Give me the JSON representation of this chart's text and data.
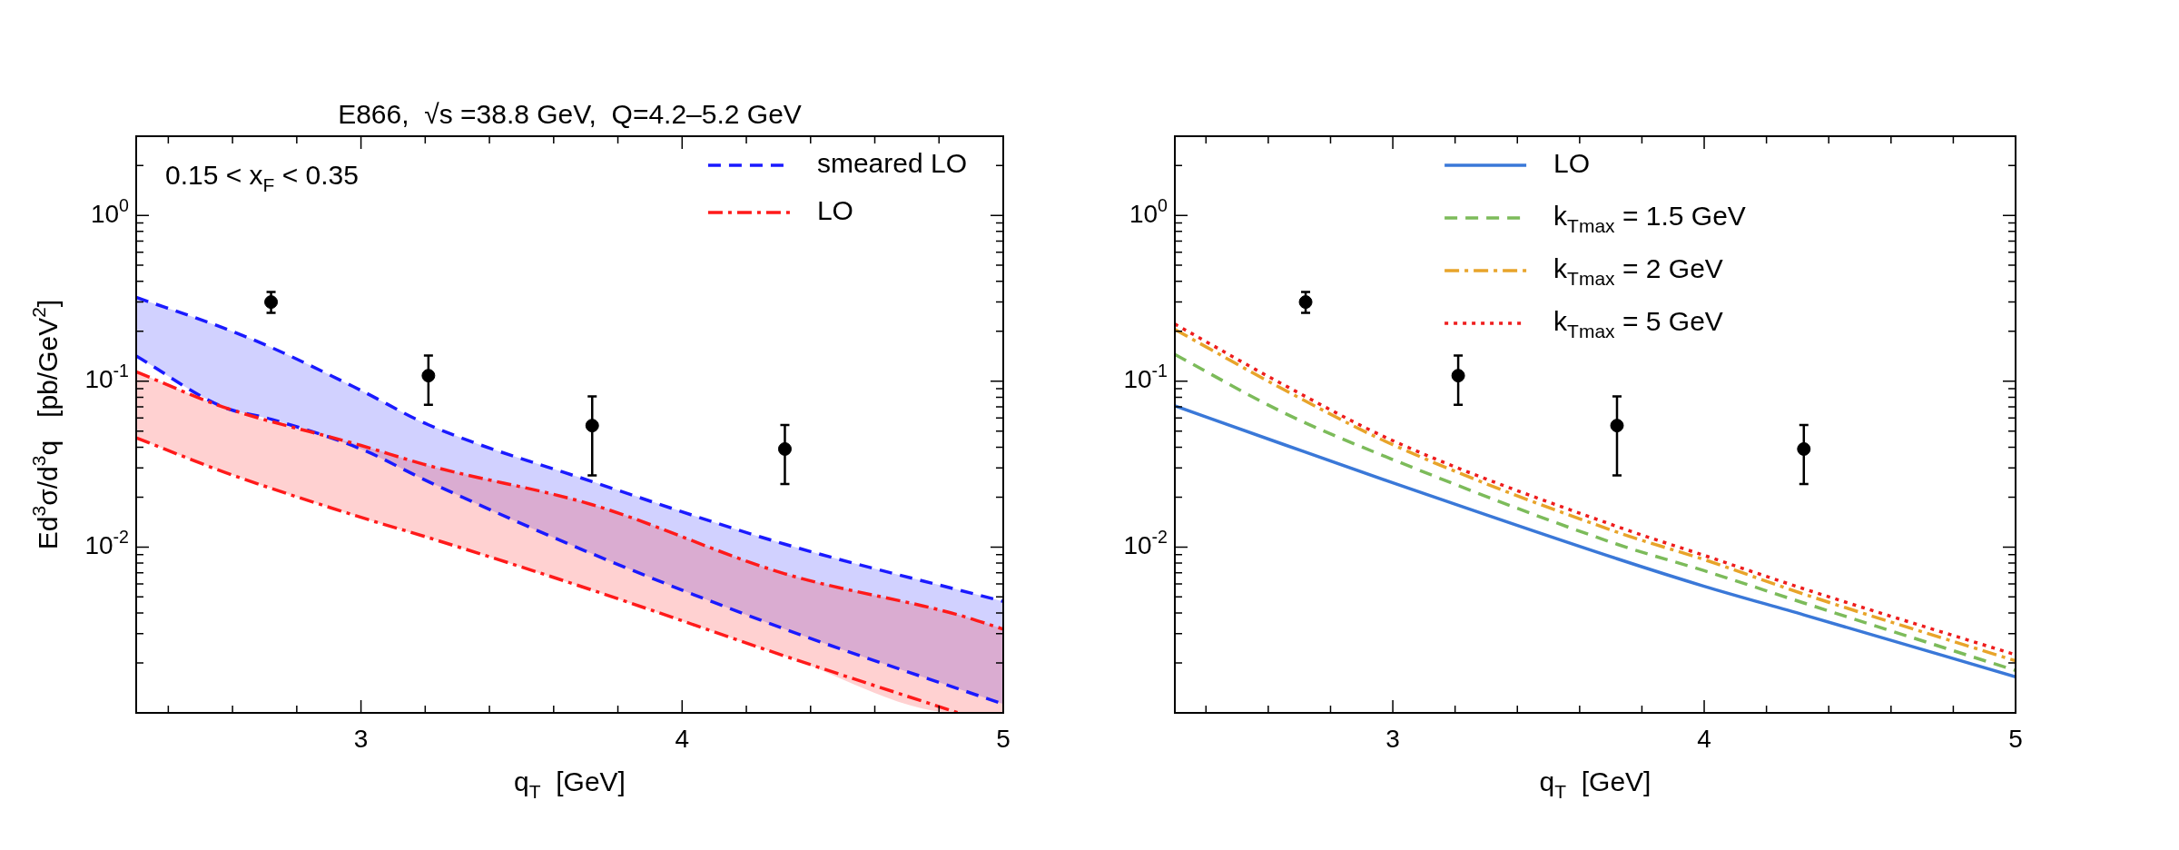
{
  "chart_data": [
    {
      "type": "line",
      "title": "E866,  √s =38.8 GeV,  Q=4.2–5.2 GeV",
      "xlabel": "q$_{T}$  [GeV]",
      "ylabel": "Ed$^{3}$σ/d$^{3}$q   [pb/GeV$^{2}$]",
      "annotations": [
        "0.15 < x$_{F}$ < 0.35"
      ],
      "log": "y",
      "grid": false,
      "legend": "top right",
      "xlim": [
        2.3,
        5
      ],
      "ylim": [
        0.001,
        3
      ],
      "xticks": [
        {
          "value": 2.4,
          "label": null
        },
        {
          "value": 2.6,
          "label": null
        },
        {
          "value": 2.8,
          "label": null
        },
        3,
        {
          "value": 3.2,
          "label": null
        },
        {
          "value": 3.4,
          "label": null
        },
        {
          "value": 3.6,
          "label": null
        },
        {
          "value": 3.8,
          "label": null
        },
        4,
        {
          "value": 4.2,
          "label": null
        },
        {
          "value": 4.4,
          "label": null
        },
        {
          "value": 4.6,
          "label": null
        },
        {
          "value": 4.8,
          "label": null
        },
        5
      ],
      "yticks": [
        {
          "value": 0.002,
          "label": null
        },
        {
          "value": 0.003,
          "label": null
        },
        {
          "value": 0.004,
          "label": null
        },
        {
          "value": 0.005,
          "label": null
        },
        {
          "value": 0.006,
          "label": null
        },
        {
          "value": 0.007,
          "label": null
        },
        {
          "value": 0.008,
          "label": null
        },
        {
          "value": 0.009,
          "label": null
        },
        {
          "value": 0.01,
          "label": "10$^{-2}$"
        },
        {
          "value": 0.02,
          "label": null
        },
        {
          "value": 0.03,
          "label": null
        },
        {
          "value": 0.04,
          "label": null
        },
        {
          "value": 0.05,
          "label": null
        },
        {
          "value": 0.06,
          "label": null
        },
        {
          "value": 0.07,
          "label": null
        },
        {
          "value": 0.08,
          "label": null
        },
        {
          "value": 0.09,
          "label": null
        },
        {
          "value": 0.1,
          "label": "10$^{-1}$"
        },
        {
          "value": 0.2,
          "label": null
        },
        {
          "value": 0.3,
          "label": null
        },
        {
          "value": 0.4,
          "label": null
        },
        {
          "value": 0.5,
          "label": null
        },
        {
          "value": 0.6,
          "label": null
        },
        {
          "value": 0.7,
          "label": null
        },
        {
          "value": 0.8,
          "label": null
        },
        {
          "value": 0.9,
          "label": null
        },
        {
          "value": 1,
          "label": "10$^{0}$"
        },
        {
          "value": 2,
          "label": null
        },
        {
          "value": 3,
          "label": null
        }
      ],
      "series": [
        {
          "name": "smeared LO",
          "line_style": "dashed",
          "color": "#1a1aff",
          "x": [
            2.3,
            2.57,
            2.72,
            3.0,
            3.21,
            3.72,
            4.32,
            5.0
          ],
          "values": [
            0.32,
            0.21,
            0.16,
            0.088,
            0.0546,
            0.0248,
            0.0104,
            0.0047
          ],
          "upper": [
            0.32,
            0.21,
            0.16,
            0.088,
            0.0546,
            0.0248,
            0.0104,
            0.0047
          ],
          "lower": [
            0.142,
            0.07,
            0.059,
            0.039,
            0.0248,
            0.0091,
            0.0032,
            0.00113
          ]
        },
        {
          "line_style": "dashed",
          "color": "#1a1aff",
          "x": [
            2.3,
            2.57,
            2.72,
            3.0,
            3.21,
            3.72,
            4.32,
            5.0
          ],
          "values": [
            0.142,
            0.07,
            0.059,
            0.039,
            0.0248,
            0.0091,
            0.0032,
            0.00113
          ]
        },
        {
          "name": "LO",
          "line_style": "dashdot",
          "color": "#ff1a1a",
          "x": [
            2.3,
            2.57,
            3.0,
            3.21,
            3.72,
            4.32,
            4.86,
            5.0
          ],
          "values": [
            0.114,
            0.07,
            0.041,
            0.031,
            0.018,
            0.0069,
            0.0039,
            0.0032
          ],
          "upper": [
            0.114,
            0.07,
            0.041,
            0.031,
            0.018,
            0.0069,
            0.0039,
            0.0032
          ],
          "lower": [
            0.0456,
            0.0285,
            0.0151,
            0.0114,
            0.0055,
            0.0022,
            0.001,
            0.001
          ]
        },
        {
          "line_style": "dashdot",
          "color": "#ff1a1a",
          "x": [
            2.3,
            2.57,
            3.0,
            3.21,
            3.72,
            4.32,
            4.86
          ],
          "values": [
            0.0456,
            0.0285,
            0.0151,
            0.0114,
            0.0055,
            0.0022,
            0.001
          ]
        },
        {
          "type": "scatter",
          "marker": "circle",
          "color": "#000000",
          "x": [
            2.72,
            3.21,
            3.72,
            4.32
          ],
          "values": [
            0.3,
            0.108,
            0.054,
            0.039
          ],
          "errors": [
            [
              0.258,
              0.345
            ],
            [
              0.072,
              0.143
            ],
            [
              0.027,
              0.081
            ],
            [
              0.024,
              0.0545
            ]
          ]
        }
      ]
    },
    {
      "type": "line",
      "xlabel": "q$_{T}$  [GeV]",
      "log": "y",
      "grid": false,
      "legend": "top",
      "xlim": [
        2.3,
        5
      ],
      "ylim": [
        0.001,
        3
      ],
      "xticks": [
        {
          "value": 2.4,
          "label": null
        },
        {
          "value": 2.6,
          "label": null
        },
        {
          "value": 2.8,
          "label": null
        },
        3,
        {
          "value": 3.2,
          "label": null
        },
        {
          "value": 3.4,
          "label": null
        },
        {
          "value": 3.6,
          "label": null
        },
        {
          "value": 3.8,
          "label": null
        },
        4,
        {
          "value": 4.2,
          "label": null
        },
        {
          "value": 4.4,
          "label": null
        },
        {
          "value": 4.6,
          "label": null
        },
        {
          "value": 4.8,
          "label": null
        },
        5
      ],
      "yticks": [
        {
          "value": 0.002,
          "label": null
        },
        {
          "value": 0.003,
          "label": null
        },
        {
          "value": 0.004,
          "label": null
        },
        {
          "value": 0.005,
          "label": null
        },
        {
          "value": 0.006,
          "label": null
        },
        {
          "value": 0.007,
          "label": null
        },
        {
          "value": 0.008,
          "label": null
        },
        {
          "value": 0.009,
          "label": null
        },
        {
          "value": 0.01,
          "label": "10$^{-2}$"
        },
        {
          "value": 0.02,
          "label": null
        },
        {
          "value": 0.03,
          "label": null
        },
        {
          "value": 0.04,
          "label": null
        },
        {
          "value": 0.05,
          "label": null
        },
        {
          "value": 0.06,
          "label": null
        },
        {
          "value": 0.07,
          "label": null
        },
        {
          "value": 0.08,
          "label": null
        },
        {
          "value": 0.09,
          "label": null
        },
        {
          "value": 0.1,
          "label": "10$^{-1}$"
        },
        {
          "value": 0.2,
          "label": null
        },
        {
          "value": 0.3,
          "label": null
        },
        {
          "value": 0.4,
          "label": null
        },
        {
          "value": 0.5,
          "label": null
        },
        {
          "value": 0.6,
          "label": null
        },
        {
          "value": 0.7,
          "label": null
        },
        {
          "value": 0.8,
          "label": null
        },
        {
          "value": 0.9,
          "label": null
        },
        {
          "value": 1,
          "label": "10$^{0}$"
        },
        {
          "value": 2,
          "label": null
        },
        {
          "value": 3,
          "label": null
        }
      ],
      "series": [
        {
          "name": "LO",
          "line_style": "solid",
          "color": "#3a78d8",
          "x": [
            2.3,
            2.65,
            3.0,
            3.72,
            4.0,
            4.32,
            5.0
          ],
          "values": [
            0.071,
            0.0415,
            0.0244,
            0.0085,
            0.0058,
            0.0039,
            0.00165
          ]
        },
        {
          "name": "k$_{Tmax}$ = 1.5 GeV",
          "line_style": "dashed",
          "color": "#7cbb5a",
          "x": [
            2.3,
            2.65,
            3.0,
            3.72,
            4.0,
            4.32,
            5.0
          ],
          "values": [
            0.145,
            0.0645,
            0.0337,
            0.0104,
            0.0072,
            0.0046,
            0.0018
          ]
        },
        {
          "name": "k$_{Tmax}$ = 2 GeV",
          "line_style": "dashdot",
          "color": "#e8a42a",
          "x": [
            2.3,
            2.65,
            3.0,
            3.72,
            4.0,
            4.32,
            5.0
          ],
          "values": [
            0.205,
            0.089,
            0.0414,
            0.0123,
            0.0084,
            0.0052,
            0.00206
          ]
        },
        {
          "name": "k$_{Tmax}$ = 5 GeV",
          "line_style": "dotted",
          "color": "#ee1c1c",
          "x": [
            2.3,
            2.65,
            3.0,
            3.72,
            4.0,
            4.32,
            5.0
          ],
          "values": [
            0.221,
            0.095,
            0.0438,
            0.0133,
            0.0089,
            0.0056,
            0.00224
          ]
        },
        {
          "type": "scatter",
          "marker": "circle",
          "color": "#000000",
          "x": [
            2.72,
            3.21,
            3.72,
            4.32
          ],
          "values": [
            0.3,
            0.108,
            0.054,
            0.039
          ],
          "errors": [
            [
              0.258,
              0.345
            ],
            [
              0.072,
              0.143
            ],
            [
              0.027,
              0.081
            ],
            [
              0.024,
              0.0545
            ]
          ]
        }
      ]
    }
  ]
}
